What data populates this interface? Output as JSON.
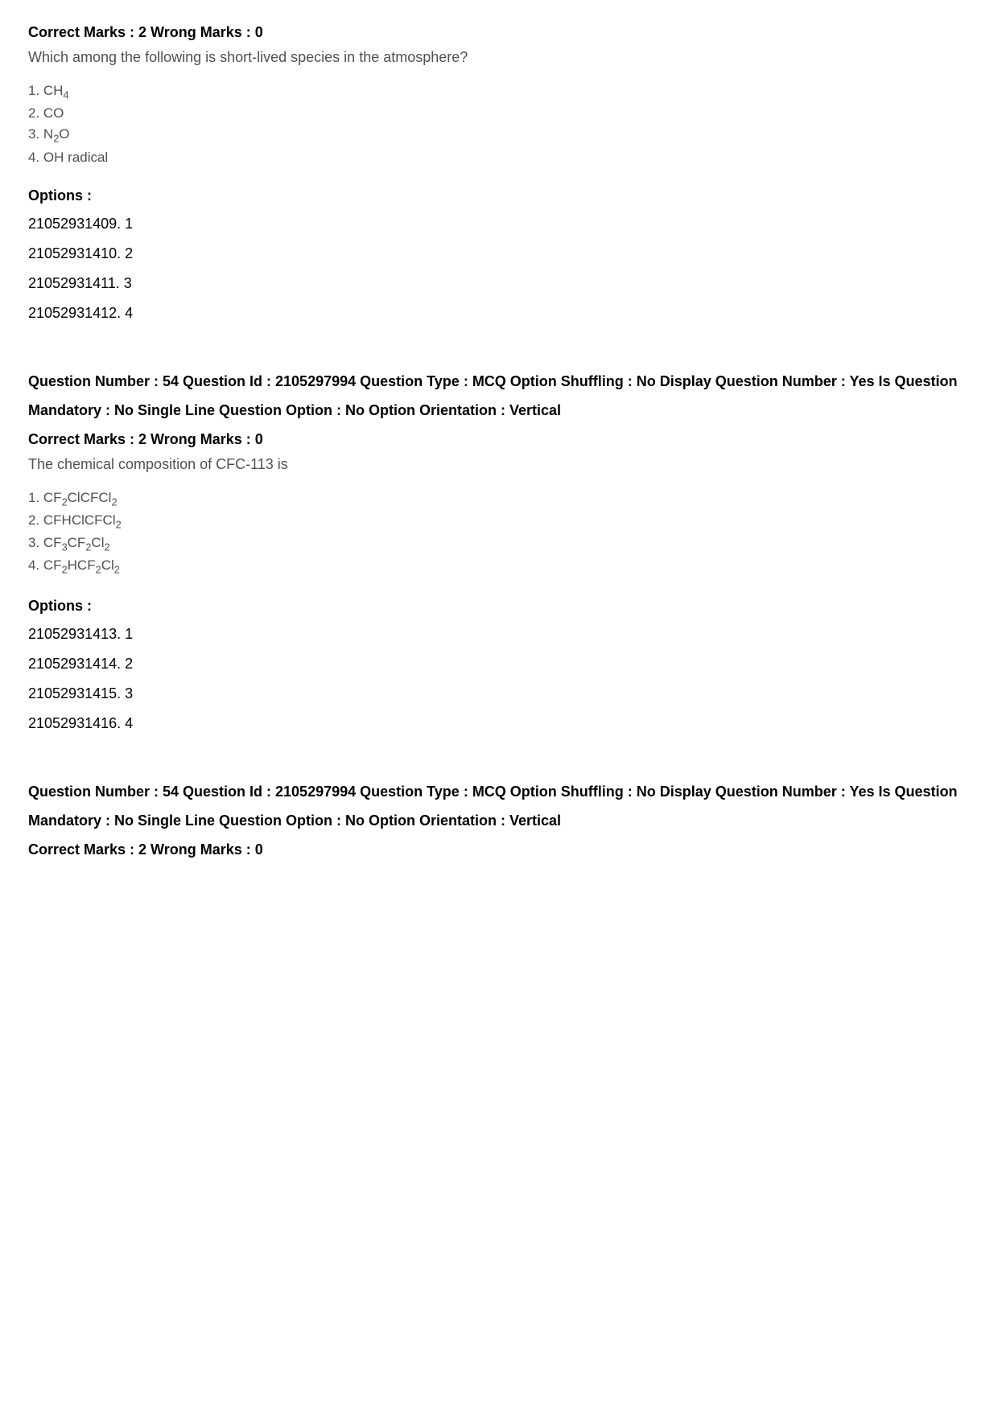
{
  "q1": {
    "marks": "Correct Marks : 2 Wrong Marks : 0",
    "text": "Which among the following is short-lived species in the atmosphere?",
    "answers": {
      "a1_pre": "1. CH",
      "a1_sub": "4",
      "a2": "2. CO",
      "a3_pre": "3. N",
      "a3_sub": "2",
      "a3_post": "O",
      "a4": "4. OH radical"
    },
    "options_heading": "Options :",
    "options": {
      "o1": "21052931409. 1",
      "o2": "21052931410. 2",
      "o3": "21052931411. 3",
      "o4": "21052931412. 4"
    }
  },
  "q2": {
    "meta": "Question Number : 54 Question Id : 2105297994 Question Type : MCQ Option Shuffling : No Display Question Number : Yes Is Question Mandatory : No Single Line Question Option : No Option Orientation : Vertical",
    "marks": "Correct Marks : 2 Wrong Marks : 0",
    "text": "The chemical composition of CFC-113 is",
    "answers": {
      "a1_p1": "1. CF",
      "a1_s1": "2",
      "a1_p2": "ClCFCl",
      "a1_s2": "2",
      "a2_p1": "2. CFHClCFCl",
      "a2_s1": "2",
      "a3_p1": "3. CF",
      "a3_s1": "3",
      "a3_p2": "CF",
      "a3_s2": "2",
      "a3_p3": "Cl",
      "a3_s3": "2",
      "a4_p1": "4. CF",
      "a4_s1": "2",
      "a4_p2": "HCF",
      "a4_s2": "2",
      "a4_p3": "Cl",
      "a4_s3": "2"
    },
    "options_heading": "Options :",
    "options": {
      "o1": "21052931413. 1",
      "o2": "21052931414. 2",
      "o3": "21052931415. 3",
      "o4": "21052931416. 4"
    }
  },
  "q3": {
    "meta": "Question Number : 54 Question Id : 2105297994 Question Type : MCQ Option Shuffling : No Display Question Number : Yes Is Question Mandatory : No Single Line Question Option : No Option Orientation : Vertical",
    "marks": "Correct Marks : 2 Wrong Marks : 0"
  }
}
